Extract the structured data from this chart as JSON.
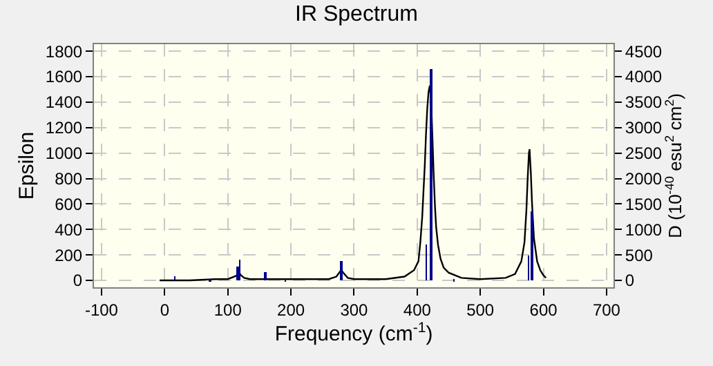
{
  "chart_data": {
    "type": "line",
    "title": "IR Spectrum",
    "xlabel": "Frequency (cm$^{-1}$)",
    "ylabel": "Epsilon",
    "y2label": "D (10$^{-40}$ esu$^{2}$ cm$^{2}$)",
    "xlim": [
      -112,
      711
    ],
    "xticks": [
      -100,
      0,
      100,
      200,
      300,
      400,
      500,
      600,
      700
    ],
    "ylim": [
      -54,
      1855
    ],
    "yticks": [
      0,
      200,
      400,
      600,
      800,
      1000,
      1200,
      1400,
      1600,
      1800
    ],
    "y2lim": [
      -135,
      4637
    ],
    "y2ticks": [
      0,
      500,
      1000,
      1500,
      2000,
      2500,
      3000,
      3500,
      4000,
      4500
    ],
    "grid": true,
    "marker": "none",
    "series": [
      {
        "color": "#000000",
        "x": [
          -8,
          20,
          40,
          80,
          100,
          110,
          115,
          118,
          121,
          126,
          135,
          160,
          200,
          260,
          272,
          278,
          280,
          283,
          290,
          300,
          320,
          350,
          380,
          395,
          402,
          405,
          408,
          410,
          412,
          414,
          416,
          418,
          420,
          422,
          424,
          426,
          428,
          430,
          433,
          437,
          442,
          450,
          470,
          500,
          540,
          555,
          565,
          570,
          573,
          575,
          577,
          578,
          580,
          582,
          585,
          590,
          595,
          600,
          604
        ],
        "values": [
          0,
          0,
          0,
          10,
          10,
          30,
          40,
          60,
          40,
          20,
          10,
          10,
          10,
          10,
          30,
          70,
          80,
          60,
          20,
          10,
          10,
          10,
          30,
          80,
          150,
          300,
          500,
          700,
          900,
          1150,
          1350,
          1480,
          1530,
          1420,
          1150,
          850,
          600,
          420,
          280,
          170,
          100,
          60,
          20,
          10,
          20,
          50,
          150,
          300,
          550,
          800,
          1000,
          1030,
          850,
          600,
          330,
          150,
          80,
          40,
          20
        ]
      },
      {
        "type": "bar",
        "axis": "y2",
        "color": "#00008b",
        "x": [
          16,
          72,
          116,
          119,
          159,
          191,
          280,
          415,
          422,
          458,
          577,
          582
        ],
        "values": [
          80,
          20,
          280,
          420,
          150,
          20,
          390,
          700,
          4150,
          30,
          500,
          1350
        ]
      }
    ]
  }
}
